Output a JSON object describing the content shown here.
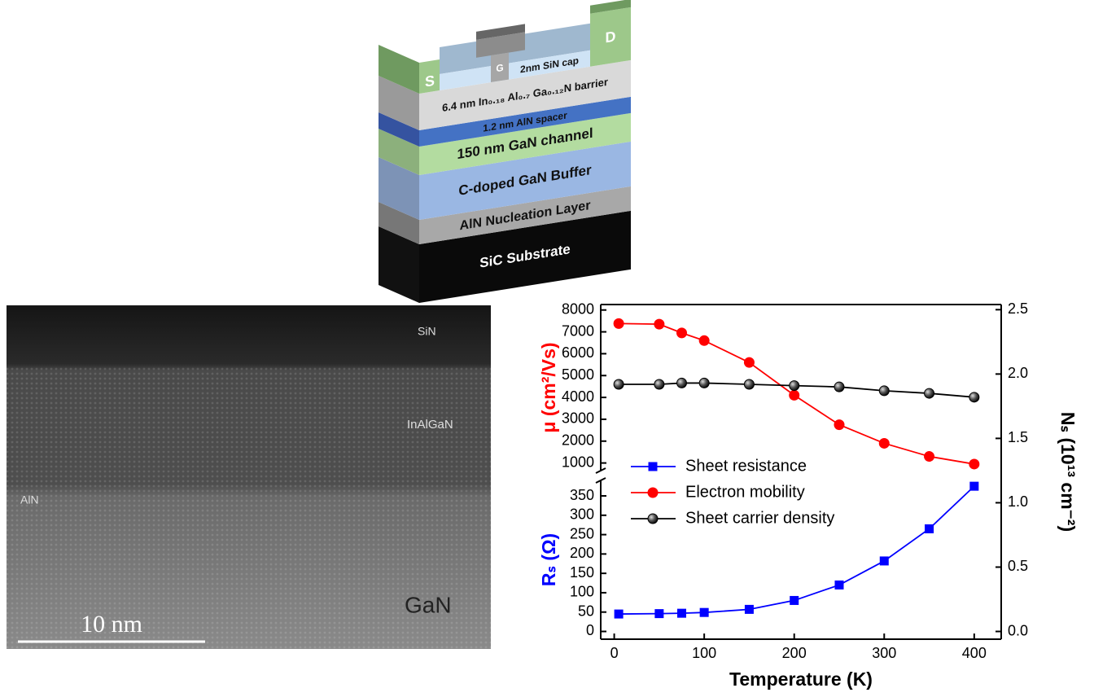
{
  "diagram": {
    "source": "S",
    "drain": "D",
    "gate": "G",
    "layers": [
      "2nm SiN cap",
      "6.4 nm In₀.₁₈ Al₀.₇ Ga₀.₁₂N barrier",
      "1.2 nm AlN spacer",
      "150 nm GaN channel",
      "C-doped GaN Buffer",
      "AlN Nucleation Layer",
      "SiC Substrate"
    ]
  },
  "tem_image": {
    "labels": [
      "SiN",
      "InAlGaN",
      "AlN",
      "GaN"
    ],
    "scale_bar": "10 nm"
  },
  "chart_data": {
    "type": "line",
    "x_label": "Temperature (K)",
    "x": [
      5,
      50,
      75,
      100,
      150,
      200,
      250,
      300,
      350,
      400
    ],
    "xlim": [
      -15,
      430
    ],
    "xticks": [
      0,
      100,
      200,
      300,
      400
    ],
    "ylabel_top": "μ (cm²/Vs)",
    "ylim_top": [
      650,
      8250
    ],
    "yticks_top": [
      1000,
      2000,
      3000,
      4000,
      5000,
      6000,
      7000,
      8000
    ],
    "ylabel_bottom": "Rₛ (Ω)",
    "ylim_bottom": [
      -20,
      390
    ],
    "yticks_bottom": [
      0,
      50,
      100,
      150,
      200,
      250,
      300,
      350
    ],
    "y2_label": "Nₛ (10¹³ cm⁻²)",
    "y2lim": [
      -0.06,
      2.54
    ],
    "y2ticks": [
      {
        "value": 0,
        "label": "0.0"
      },
      0.5,
      {
        "value": 1,
        "label": "1.0"
      },
      1.5,
      {
        "value": 2,
        "label": "2.0"
      },
      2.5
    ],
    "legend_position": "center-left",
    "series": [
      {
        "name": "Sheet resistance",
        "color": "#0000ff",
        "marker": "square",
        "axis": "y_bottom",
        "values": [
          45,
          46,
          47,
          49,
          57,
          80,
          120,
          182,
          265,
          375
        ]
      },
      {
        "name": "Electron mobility",
        "color": "#ff0000",
        "marker": "circle",
        "axis": "y_top",
        "values": [
          7380,
          7350,
          6950,
          6600,
          5600,
          4100,
          2750,
          1900,
          1300,
          950
        ]
      },
      {
        "name": "Sheet carrier density",
        "color": "#000000",
        "marker": "sphere",
        "axis": "y2",
        "values": [
          1.92,
          1.92,
          1.93,
          1.93,
          1.92,
          1.91,
          1.9,
          1.87,
          1.85,
          1.82
        ]
      }
    ]
  }
}
